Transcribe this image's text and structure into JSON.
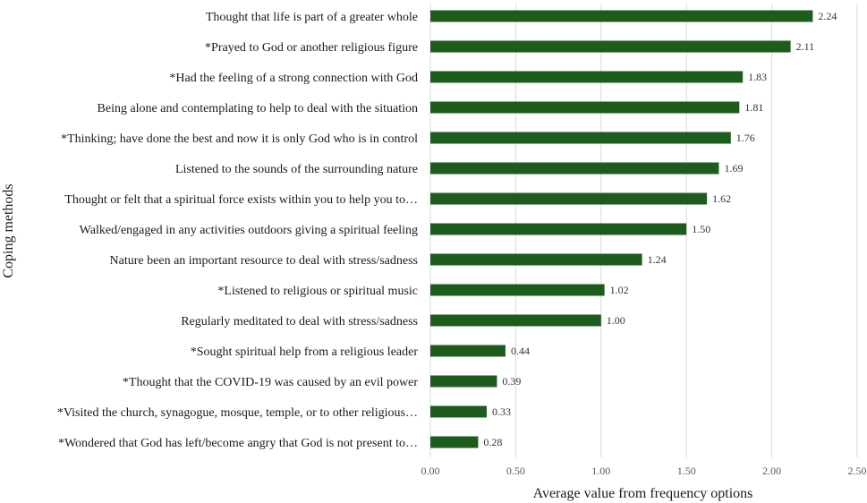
{
  "chart_data": {
    "type": "bar",
    "orientation": "horizontal",
    "xlabel": "Average value from frequency options",
    "ylabel": "Coping methods",
    "xlim": [
      0,
      2.5
    ],
    "xticks": [
      "0.00",
      "0.50",
      "1.00",
      "1.50",
      "2.00",
      "2.50"
    ],
    "grid": "vertical",
    "bar_color": "#1e5c1e",
    "categories": [
      "Thought that life is part of a greater whole",
      "*Prayed to God or another religious figure",
      "*Had the feeling of a strong connection with God",
      "Being alone and contemplating to help to deal with the situation",
      "*Thinking; have done the best and now it is only God who is in control",
      "Listened to the sounds of the surrounding nature",
      "Thought or felt that a spiritual force exists within you to help you to…",
      "Walked/engaged in any activities outdoors giving a spiritual feeling",
      "Nature been an important resource to deal with stress/sadness",
      "*Listened to religious or spiritual music",
      "Regularly meditated to deal with stress/sadness",
      "*Sought spiritual help from a religious leader",
      "*Thought that the COVID-19 was caused by an evil power",
      "*Visited the church, synagogue, mosque, temple, or to other religious…",
      "*Wondered that God has left/become angry that God is not present to…"
    ],
    "values": [
      2.24,
      2.11,
      1.83,
      1.81,
      1.76,
      1.69,
      1.62,
      1.5,
      1.24,
      1.02,
      1.0,
      0.44,
      0.39,
      0.33,
      0.28
    ],
    "value_labels": [
      "2.24",
      "2.11",
      "1.83",
      "1.81",
      "1.76",
      "1.69",
      "1.62",
      "1.50",
      "1.24",
      "1.02",
      "1.00",
      "0.44",
      "0.39",
      "0.33",
      "0.28"
    ]
  }
}
